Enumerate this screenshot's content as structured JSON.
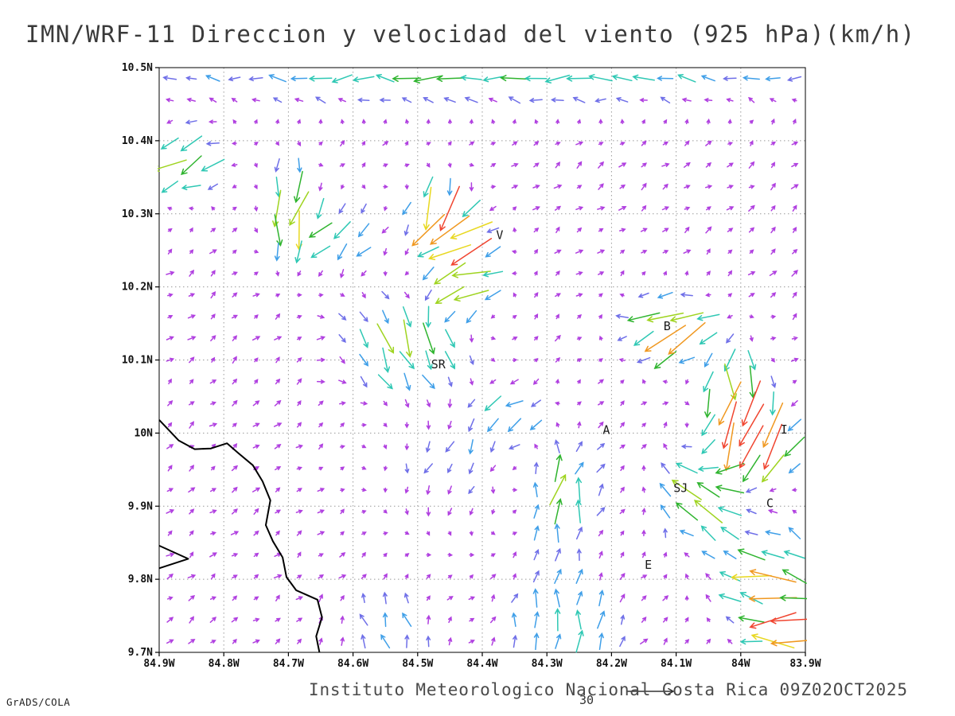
{
  "footer": {
    "caption": "Instituto Meteorologico Nacional Costa Rica 09Z02OCT2025",
    "credit": "GrADS/COLA",
    "ref_vector_label": "30",
    "ref_vector_kmh": 30
  },
  "chart_data": {
    "type": "vector_field",
    "title": "IMN/WRF-11 Direccion y velocidad del viento (925 hPa)(km/h)",
    "variable": "wind direction and speed",
    "level": "925 hPa",
    "units": "km/h",
    "x_axis": {
      "min": -84.9,
      "max": -83.9,
      "labels": [
        "84.9W",
        "84.8W",
        "84.7W",
        "84.6W",
        "84.5W",
        "84.4W",
        "84.3W",
        "84.2W",
        "84.1W",
        "84W",
        "83.9W"
      ]
    },
    "y_axis": {
      "min": 9.7,
      "max": 10.5,
      "labels": [
        "10.5N",
        "10.4N",
        "10.3N",
        "10.2N",
        "10.1N",
        "10N",
        "9.9N",
        "9.8N",
        "9.7N"
      ]
    },
    "grid": {
      "cols": 30,
      "rows": 27,
      "gridlines": "dotted"
    },
    "reference_vector_kmh": 30,
    "speed_colors": [
      {
        "max_kmh": 7,
        "color": "#b03fe0"
      },
      {
        "max_kmh": 11,
        "color": "#6f6fe8"
      },
      {
        "max_kmh": 15,
        "color": "#3f9fe8"
      },
      {
        "max_kmh": 21,
        "color": "#2fc8b4"
      },
      {
        "max_kmh": 27,
        "color": "#2fb42f"
      },
      {
        "max_kmh": 32,
        "color": "#9fd420"
      },
      {
        "max_kmh": 37,
        "color": "#e8d820"
      },
      {
        "max_kmh": 42,
        "color": "#f09820"
      },
      {
        "max_kmh": 99,
        "color": "#f04530"
      }
    ],
    "stations": [
      {
        "label": "V",
        "lon": -84.373,
        "lat": 10.271
      },
      {
        "label": "B",
        "lon": -84.114,
        "lat": 10.146
      },
      {
        "label": "SR",
        "lon": -84.468,
        "lat": 10.094
      },
      {
        "label": "A",
        "lon": -84.208,
        "lat": 10.004
      },
      {
        "label": "I",
        "lon": -83.933,
        "lat": 10.005
      },
      {
        "label": "SJ",
        "lon": -84.093,
        "lat": 9.925
      },
      {
        "label": "C",
        "lon": -83.955,
        "lat": 9.904
      },
      {
        "label": "E",
        "lon": -84.143,
        "lat": 9.82
      }
    ],
    "base_flow": {
      "dir_deg": 38,
      "speed_kmh": 5
    },
    "flow_regions": [
      {
        "name": "top-easterly-band",
        "lon": -84.4,
        "lat": 10.5,
        "rx": 0.62,
        "ry": 0.055,
        "dir_deg": 182,
        "speed_kmh": 21
      },
      {
        "name": "nw-green-jet",
        "lon": -84.86,
        "lat": 10.37,
        "rx": 0.07,
        "ry": 0.05,
        "dir_deg": 205,
        "speed_kmh": 29
      },
      {
        "name": "west-cyan-patch",
        "lon": -84.62,
        "lat": 10.27,
        "rx": 0.08,
        "ry": 0.06,
        "dir_deg": 225,
        "speed_kmh": 17
      },
      {
        "name": "north-green-downflow",
        "lon": -84.7,
        "lat": 10.31,
        "rx": 0.04,
        "ry": 0.07,
        "dir_deg": 268,
        "speed_kmh": 27
      },
      {
        "name": "volcan-orange",
        "lon": -84.43,
        "lat": 10.23,
        "rx": 0.06,
        "ry": 0.07,
        "dir_deg": 200,
        "speed_kmh": 37
      },
      {
        "name": "volcan-yellow-down",
        "lon": -84.46,
        "lat": 10.3,
        "rx": 0.05,
        "ry": 0.05,
        "dir_deg": 255,
        "speed_kmh": 33
      },
      {
        "name": "central-green-diag",
        "lon": -84.52,
        "lat": 10.12,
        "rx": 0.09,
        "ry": 0.06,
        "dir_deg": 300,
        "speed_kmh": 27
      },
      {
        "name": "b-red-jet",
        "lon": -84.11,
        "lat": 10.14,
        "rx": 0.07,
        "ry": 0.05,
        "dir_deg": 200,
        "speed_kmh": 40
      },
      {
        "name": "east-downdraft",
        "lon": -84.01,
        "lat": 10.03,
        "rx": 0.05,
        "ry": 0.08,
        "dir_deg": 268,
        "speed_kmh": 43
      },
      {
        "name": "east-orange-swirl",
        "lon": -83.96,
        "lat": 9.99,
        "rx": 0.06,
        "ry": 0.05,
        "dir_deg": 225,
        "speed_kmh": 38
      },
      {
        "name": "sj-green-flow",
        "lon": -84.06,
        "lat": 9.92,
        "rx": 0.07,
        "ry": 0.06,
        "dir_deg": 150,
        "speed_kmh": 28
      },
      {
        "name": "se-yellow-band",
        "lon": -83.95,
        "lat": 9.8,
        "rx": 0.09,
        "ry": 0.07,
        "dir_deg": 170,
        "speed_kmh": 32
      },
      {
        "name": "se-corner-red",
        "lon": -83.93,
        "lat": 9.73,
        "rx": 0.05,
        "ry": 0.03,
        "dir_deg": 180,
        "speed_kmh": 43
      },
      {
        "name": "south-center-updraft",
        "lon": -84.27,
        "lat": 9.74,
        "rx": 0.08,
        "ry": 0.06,
        "dir_deg": 95,
        "speed_kmh": 20
      },
      {
        "name": "center-cyan",
        "lon": -84.35,
        "lat": 10.03,
        "rx": 0.07,
        "ry": 0.05,
        "dir_deg": 210,
        "speed_kmh": 16
      },
      {
        "name": "central-green-updraft",
        "lon": -84.28,
        "lat": 9.92,
        "rx": 0.05,
        "ry": 0.08,
        "dir_deg": 80,
        "speed_kmh": 24
      },
      {
        "name": "sw-cyan-updraft",
        "lon": -84.55,
        "lat": 9.73,
        "rx": 0.07,
        "ry": 0.05,
        "dir_deg": 115,
        "speed_kmh": 15
      },
      {
        "name": "mid-blue-downflow",
        "lon": -84.45,
        "lat": 9.95,
        "rx": 0.12,
        "ry": 0.1,
        "dir_deg": 250,
        "speed_kmh": 10
      }
    ],
    "coastline": [
      [
        [
          -84.9,
          10.018
        ],
        [
          -84.87,
          9.99
        ],
        [
          -84.845,
          9.978
        ],
        [
          -84.82,
          9.979
        ],
        [
          -84.795,
          9.986
        ],
        [
          -84.778,
          9.973
        ],
        [
          -84.755,
          9.956
        ],
        [
          -84.74,
          9.934
        ],
        [
          -84.728,
          9.908
        ],
        [
          -84.735,
          9.874
        ],
        [
          -84.724,
          9.852
        ],
        [
          -84.709,
          9.83
        ],
        [
          -84.703,
          9.803
        ],
        [
          -84.688,
          9.785
        ],
        [
          -84.655,
          9.772
        ],
        [
          -84.648,
          9.748
        ],
        [
          -84.657,
          9.722
        ],
        [
          -84.652,
          9.7
        ]
      ],
      [
        [
          -84.9,
          9.846
        ],
        [
          -84.855,
          9.828
        ],
        [
          -84.9,
          9.815
        ]
      ]
    ]
  }
}
